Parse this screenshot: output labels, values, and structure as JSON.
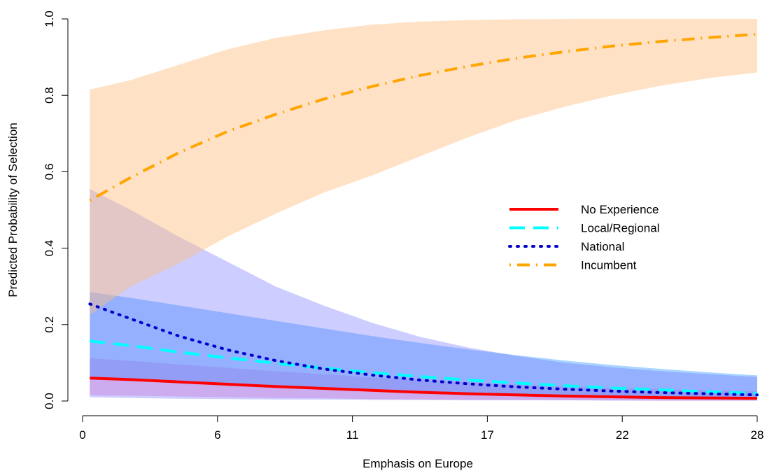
{
  "chart_data": {
    "type": "line",
    "title": "",
    "xlabel": "Emphasis on Europe",
    "ylabel": "Predicted Probability of Selection",
    "xlim": [
      0,
      28
    ],
    "ylim": [
      0,
      1
    ],
    "x_ticks": [
      0,
      5.6,
      11.2,
      16.8,
      22.4,
      28
    ],
    "x_tick_labels": [
      "0",
      "6",
      "11",
      "17",
      "22",
      "28"
    ],
    "y_ticks": [
      0,
      0.2,
      0.4,
      0.6,
      0.8,
      1.0
    ],
    "y_tick_labels": [
      "0.0",
      "0.2",
      "0.4",
      "0.6",
      "0.8",
      "1.0"
    ],
    "grid": false,
    "legend_position": "right",
    "x": [
      0.3,
      2,
      4,
      6,
      8,
      10,
      12,
      14,
      16,
      18,
      20,
      22,
      24,
      26,
      28
    ],
    "series": [
      {
        "name": "No Experience",
        "color": "#ff0000",
        "dash": "solid",
        "values": [
          0.06,
          0.056,
          0.05,
          0.044,
          0.038,
          0.033,
          0.028,
          0.023,
          0.019,
          0.016,
          0.013,
          0.011,
          0.009,
          0.008,
          0.007
        ],
        "lower": [
          0.015,
          0.014,
          0.012,
          0.01,
          0.008,
          0.007,
          0.005,
          0.004,
          0.003,
          0.003,
          0.002,
          0.002,
          0.001,
          0.001,
          0.001
        ],
        "upper": [
          0.112,
          0.105,
          0.096,
          0.087,
          0.078,
          0.07,
          0.062,
          0.055,
          0.049,
          0.043,
          0.038,
          0.034,
          0.031,
          0.028,
          0.025
        ],
        "band_color": "#ff44aa",
        "band_opacity": 0.28
      },
      {
        "name": "Local/Regional",
        "color": "#00ffff",
        "dash": "dashed",
        "values": [
          0.157,
          0.145,
          0.128,
          0.113,
          0.099,
          0.086,
          0.074,
          0.064,
          0.055,
          0.047,
          0.04,
          0.034,
          0.029,
          0.024,
          0.02
        ],
        "lower": [
          0.06,
          0.055,
          0.048,
          0.041,
          0.035,
          0.03,
          0.025,
          0.021,
          0.017,
          0.014,
          0.012,
          0.01,
          0.008,
          0.006,
          0.005
        ],
        "upper": [
          0.285,
          0.27,
          0.25,
          0.23,
          0.21,
          0.19,
          0.17,
          0.152,
          0.135,
          0.12,
          0.106,
          0.094,
          0.084,
          0.075,
          0.067
        ],
        "band_color": "#3399ff",
        "band_opacity": 0.42
      },
      {
        "name": "National",
        "color": "#0000cc",
        "dash": "dotted",
        "values": [
          0.254,
          0.215,
          0.17,
          0.134,
          0.106,
          0.084,
          0.068,
          0.055,
          0.045,
          0.037,
          0.031,
          0.026,
          0.022,
          0.019,
          0.016
        ],
        "lower": [
          0.01,
          0.008,
          0.006,
          0.005,
          0.004,
          0.004,
          0.003,
          0.003,
          0.002,
          0.002,
          0.002,
          0.001,
          0.001,
          0.001,
          0.001
        ],
        "upper": [
          0.555,
          0.5,
          0.43,
          0.365,
          0.3,
          0.25,
          0.205,
          0.168,
          0.14,
          0.118,
          0.1,
          0.088,
          0.078,
          0.07,
          0.063
        ],
        "band_color": "#6b6bff",
        "band_opacity": 0.34
      },
      {
        "name": "Incumbent",
        "color": "#ffa500",
        "dash": "dotdash",
        "values": [
          0.525,
          0.585,
          0.65,
          0.705,
          0.75,
          0.79,
          0.823,
          0.852,
          0.876,
          0.897,
          0.914,
          0.929,
          0.941,
          0.951,
          0.96
        ],
        "lower": [
          0.225,
          0.3,
          0.36,
          0.43,
          0.49,
          0.545,
          0.59,
          0.64,
          0.69,
          0.735,
          0.77,
          0.8,
          0.825,
          0.845,
          0.86
        ],
        "upper": [
          0.815,
          0.84,
          0.88,
          0.92,
          0.95,
          0.97,
          0.985,
          0.993,
          0.997,
          0.999,
          1.0,
          1.0,
          1.0,
          1.0,
          1.0
        ],
        "band_color": "#ffbf80",
        "band_opacity": 0.45
      }
    ]
  }
}
